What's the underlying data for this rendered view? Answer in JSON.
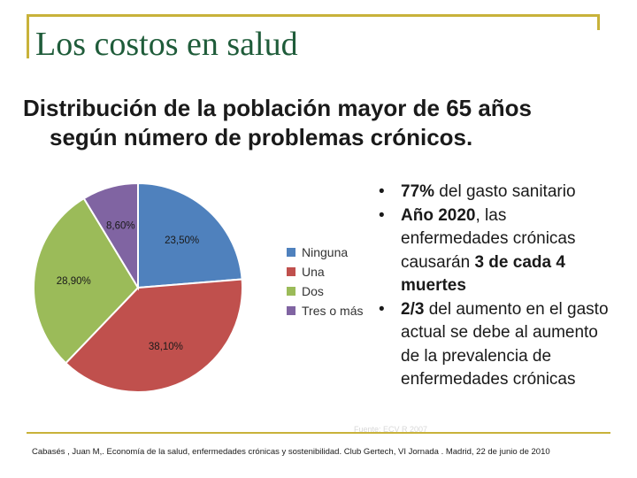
{
  "slide": {
    "title": "Los costos en salud",
    "subtitle_line1": "Distribución de la población mayor de 65 años",
    "subtitle_line2": "según número de problemas crónicos.",
    "footer_faint": "Fuente: ECV R 2007",
    "source": "Cabasés , Juan M,. Economía de la salud, enfermedades crónicas y sostenibilidad. Club Gertech, VI Jornada . Madrid, 22 de junio de 2010"
  },
  "notes": [
    {
      "bold": "77%",
      "rest": " del gasto sanitario"
    },
    {
      "bold": "Año 2020",
      "rest": ", las enfermedades crónicas causarán ",
      "bold2": "3 de cada 4 muertes"
    },
    {
      "bold": "2/3",
      "rest": " del aumento en el gasto actual se debe al aumento de la prevalencia de enfermedades crónicas"
    }
  ],
  "chart_data": {
    "type": "pie",
    "title": "",
    "categories": [
      "Ninguna",
      "Una",
      "Dos",
      "Tres o más"
    ],
    "values": [
      23.5,
      38.1,
      28.9,
      8.6
    ],
    "data_labels": [
      "23,50%",
      "38,10%",
      "28,90%",
      "8,60%"
    ],
    "colors": [
      "#4f81bd",
      "#c0504d",
      "#9bbb59",
      "#8064a2"
    ],
    "start_angle_deg": 0,
    "direction": "clockwise",
    "legend_position": "right"
  }
}
